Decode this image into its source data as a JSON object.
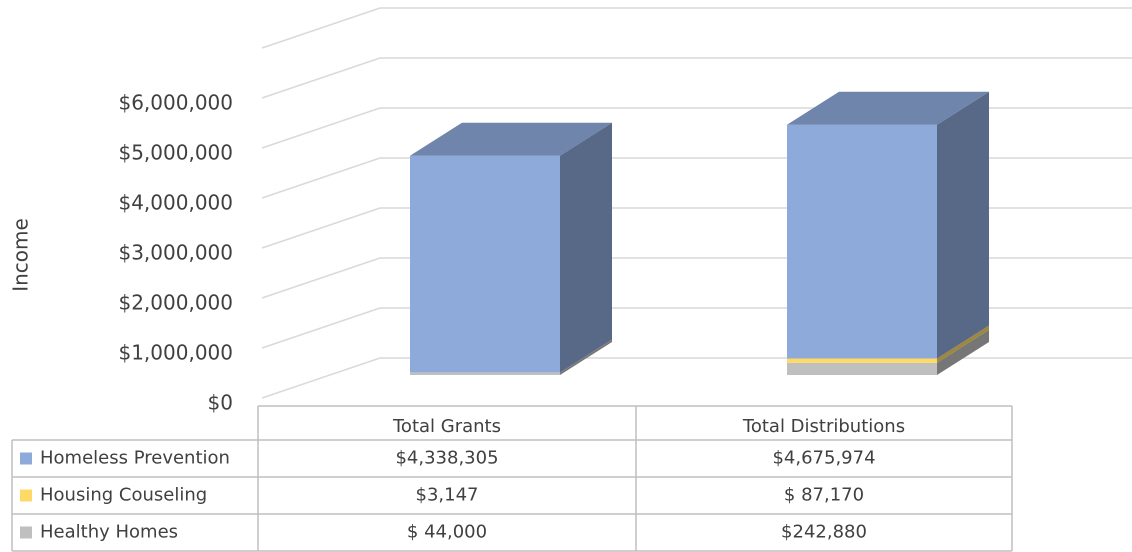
{
  "chart_data": {
    "type": "bar3d_stacked",
    "y_axis_label": "Income",
    "categories": [
      "Total Grants",
      "Total Distributions"
    ],
    "series": [
      {
        "name": "Homeless Prevention",
        "color": "#8eaadb",
        "values": [
          4338305,
          4675974
        ],
        "value_labels": [
          "$4,338,305",
          "$4,675,974"
        ]
      },
      {
        "name": "Housing Couseling",
        "color": "#ffd966",
        "values": [
          3147,
          87170
        ],
        "value_labels": [
          "$3,147",
          "$ 87,170"
        ]
      },
      {
        "name": "Healthy Homes",
        "color": "#bfbfbf",
        "values": [
          44000,
          242880
        ],
        "value_labels": [
          "$ 44,000",
          "$242,880"
        ]
      }
    ],
    "ylim": [
      0,
      7000000
    ],
    "yticks": [
      {
        "value": 0,
        "label": "$0"
      },
      {
        "value": 1000000,
        "label": "$1,000,000"
      },
      {
        "value": 2000000,
        "label": "$2,000,000"
      },
      {
        "value": 3000000,
        "label": "$3,000,000"
      },
      {
        "value": 4000000,
        "label": "$4,000,000"
      },
      {
        "value": 5000000,
        "label": "$5,000,000"
      },
      {
        "value": 6000000,
        "label": "$6,000,000"
      }
    ],
    "grid": true
  }
}
